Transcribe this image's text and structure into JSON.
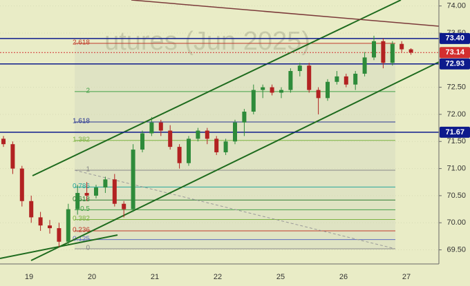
{
  "chart_data": {
    "type": "candlestick",
    "watermark": "utures (Jun 2025)",
    "ylim": [
      69.24,
      74.11
    ],
    "yticks": [
      {
        "value": 74,
        "label": "74.00"
      },
      {
        "value": 73.5,
        "label": "73.50"
      },
      {
        "value": 72.5,
        "label": "72.50"
      },
      {
        "value": 72,
        "label": "72.00"
      },
      {
        "value": 71.5,
        "label": "71.50"
      },
      {
        "value": 71,
        "label": "71.00"
      },
      {
        "value": 70.5,
        "label": "70.50"
      },
      {
        "value": 70,
        "label": "70.00"
      },
      {
        "value": 69.5,
        "label": "69.50"
      }
    ],
    "x_labels": [
      "19",
      "20",
      "21",
      "22",
      "25",
      "26",
      "27"
    ],
    "up_color": "#2e8b3a",
    "down_color": "#b22222",
    "candles": {
      "open": [
        71.55,
        71.45,
        71.0,
        70.4,
        70.1,
        69.95,
        69.9,
        69.65,
        70.25,
        70.55,
        70.5,
        70.65,
        70.8,
        70.35,
        70.25,
        71.35,
        71.65,
        71.85,
        71.7,
        71.4,
        71.1,
        71.55,
        71.7,
        71.55,
        71.3,
        71.5,
        71.85,
        72.05,
        72.45,
        72.5,
        72.4,
        72.45,
        72.8,
        72.9,
        72.45,
        72.3,
        72.6,
        72.7,
        72.55,
        72.75,
        73.05,
        73.35,
        72.95,
        73.3,
        73.2
      ],
      "high": [
        71.6,
        71.5,
        71.05,
        70.5,
        70.2,
        70.05,
        70.0,
        70.35,
        70.7,
        70.75,
        70.7,
        70.85,
        70.9,
        70.4,
        71.45,
        71.7,
        71.95,
        71.9,
        71.8,
        71.45,
        71.6,
        71.75,
        71.75,
        71.6,
        71.55,
        71.9,
        72.1,
        72.55,
        72.55,
        72.55,
        72.5,
        72.85,
        72.95,
        72.95,
        72.5,
        72.65,
        72.8,
        72.75,
        72.8,
        73.15,
        73.45,
        73.4,
        73.35,
        73.35,
        73.22
      ],
      "low": [
        71.4,
        70.9,
        70.3,
        70.0,
        69.85,
        69.8,
        69.55,
        69.6,
        70.15,
        70.4,
        70.45,
        70.55,
        70.3,
        70.1,
        70.2,
        71.3,
        71.6,
        71.6,
        71.35,
        71.0,
        71.05,
        71.5,
        71.45,
        71.25,
        71.25,
        71.45,
        71.6,
        72.0,
        72.3,
        72.35,
        72.3,
        72.4,
        72.7,
        72.4,
        72.0,
        72.25,
        72.55,
        72.5,
        72.45,
        72.7,
        73.0,
        72.85,
        72.9,
        73.15,
        73.1
      ],
      "close": [
        71.45,
        71.0,
        70.4,
        70.1,
        69.95,
        69.9,
        69.65,
        70.25,
        70.55,
        70.5,
        70.65,
        70.8,
        70.35,
        70.25,
        71.35,
        71.65,
        71.85,
        71.7,
        71.4,
        71.1,
        71.55,
        71.7,
        71.55,
        71.3,
        71.5,
        71.85,
        72.05,
        72.45,
        72.5,
        72.4,
        72.45,
        72.8,
        72.9,
        72.45,
        72.3,
        72.6,
        72.7,
        72.55,
        72.75,
        73.05,
        73.35,
        72.95,
        73.3,
        73.2,
        73.14
      ]
    },
    "price_lines": [
      {
        "price": 73.4,
        "label": "73.40",
        "color": "#0d1a8c"
      },
      {
        "price": 73.14,
        "label": "73.14",
        "color": "#d32f2f"
      },
      {
        "price": 72.93,
        "label": "72.93",
        "color": "#0d1a8c"
      },
      {
        "price": 71.67,
        "label": "71.67",
        "color": "#0d1a8c"
      }
    ],
    "fib_levels": [
      {
        "label": "2.618",
        "price": 73.31,
        "color": "#c0392b"
      },
      {
        "label": "2",
        "price": 72.42,
        "color": "#43a047"
      },
      {
        "label": "1.618",
        "price": 71.86,
        "color": "#283593"
      },
      {
        "label": "1.382",
        "price": 71.52,
        "color": "#7cb342"
      },
      {
        "label": "1",
        "price": 70.97,
        "color": "#888888"
      },
      {
        "label": "0.786",
        "price": 70.66,
        "color": "#26a69a"
      },
      {
        "label": "0.618",
        "price": 70.42,
        "color": "#2e7d32"
      },
      {
        "label": "0.5",
        "price": 70.24,
        "color": "#43a047"
      },
      {
        "label": "0.382",
        "price": 70.06,
        "color": "#7cb342"
      },
      {
        "label": "0.236",
        "price": 69.85,
        "color": "#c0392b"
      },
      {
        "label": "0.125",
        "price": 69.69,
        "color": "#5c6bc0"
      },
      {
        "label": "0",
        "price": 69.52,
        "color": "#888888"
      }
    ]
  }
}
